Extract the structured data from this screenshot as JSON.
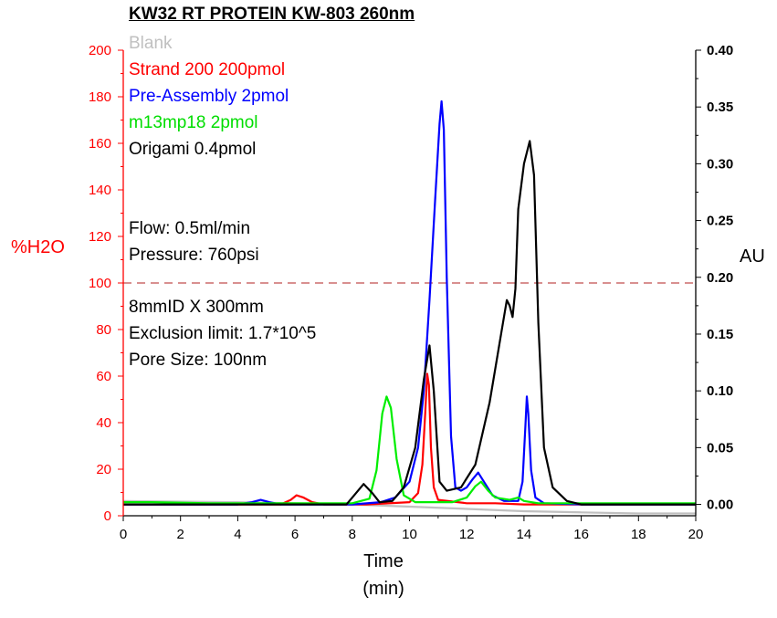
{
  "chart_data": {
    "type": "line",
    "title": "KW32 RT PROTEIN KW-803 260nm",
    "xlabel": "Time",
    "xlabel_unit": "(min)",
    "ylabel_left": "%H2O",
    "ylabel_right": "AU",
    "xlim": [
      0,
      20
    ],
    "ylim_left": [
      0,
      200
    ],
    "ylim_right": [
      -0.01,
      0.4
    ],
    "x_ticks": [
      "0",
      "2",
      "4",
      "6",
      "8",
      "10",
      "12",
      "14",
      "16",
      "18",
      "20"
    ],
    "y_left_ticks": [
      "0",
      "20",
      "40",
      "60",
      "80",
      "100",
      "120",
      "140",
      "160",
      "180",
      "200"
    ],
    "y_right_ticks": [
      "0.00",
      "0.05",
      "0.10",
      "0.15",
      "0.20",
      "0.25",
      "0.30",
      "0.35",
      "0.40"
    ],
    "reference_line": {
      "axis": "left",
      "value": 100,
      "style": "dashed",
      "color": "#b22222"
    },
    "legend_placement": "top-left",
    "notes": [
      "Flow: 0.5ml/min",
      "Pressure: 760psi",
      "8mmID X 300mm",
      "Exclusion limit: 1.7*10^5",
      "Pore Size: 100nm"
    ],
    "series": [
      {
        "name": "Blank",
        "color": "#c0c0c0",
        "points": [
          [
            0,
            0.003
          ],
          [
            4,
            0.002
          ],
          [
            8,
            0.0
          ],
          [
            10,
            -0.002
          ],
          [
            12,
            -0.004
          ],
          [
            14,
            -0.006
          ],
          [
            16,
            -0.007
          ],
          [
            18,
            -0.008
          ],
          [
            20,
            -0.008
          ]
        ]
      },
      {
        "name": "Strand 200 200pmol",
        "color": "#ff0000",
        "points": [
          [
            0,
            0.0
          ],
          [
            5.5,
            0.0
          ],
          [
            5.85,
            0.004
          ],
          [
            6.05,
            0.008
          ],
          [
            6.3,
            0.006
          ],
          [
            6.6,
            0.002
          ],
          [
            7.0,
            0.0
          ],
          [
            8.5,
            0.0
          ],
          [
            10.0,
            0.002
          ],
          [
            10.3,
            0.01
          ],
          [
            10.45,
            0.035
          ],
          [
            10.55,
            0.08
          ],
          [
            10.62,
            0.115
          ],
          [
            10.68,
            0.105
          ],
          [
            10.75,
            0.05
          ],
          [
            10.85,
            0.015
          ],
          [
            11.0,
            0.004
          ],
          [
            12.0,
            0.001
          ],
          [
            13.0,
            0.001
          ],
          [
            14.0,
            0.0
          ],
          [
            20,
            0.0
          ]
        ]
      },
      {
        "name": "Pre-Assembly 2pmol",
        "color": "#0000ff",
        "points": [
          [
            0,
            0.0
          ],
          [
            4.0,
            0.0
          ],
          [
            4.5,
            0.002
          ],
          [
            4.8,
            0.004
          ],
          [
            5.1,
            0.002
          ],
          [
            5.5,
            0.0
          ],
          [
            8.0,
            0.0
          ],
          [
            9.0,
            0.002
          ],
          [
            9.5,
            0.006
          ],
          [
            10.0,
            0.02
          ],
          [
            10.3,
            0.05
          ],
          [
            10.5,
            0.1
          ],
          [
            10.7,
            0.18
          ],
          [
            10.9,
            0.27
          ],
          [
            11.05,
            0.335
          ],
          [
            11.12,
            0.355
          ],
          [
            11.2,
            0.33
          ],
          [
            11.3,
            0.2
          ],
          [
            11.45,
            0.06
          ],
          [
            11.6,
            0.015
          ],
          [
            11.8,
            0.012
          ],
          [
            12.0,
            0.015
          ],
          [
            12.2,
            0.022
          ],
          [
            12.4,
            0.028
          ],
          [
            12.6,
            0.02
          ],
          [
            12.9,
            0.008
          ],
          [
            13.3,
            0.003
          ],
          [
            13.8,
            0.003
          ],
          [
            13.95,
            0.02
          ],
          [
            14.05,
            0.07
          ],
          [
            14.1,
            0.095
          ],
          [
            14.15,
            0.08
          ],
          [
            14.25,
            0.03
          ],
          [
            14.4,
            0.006
          ],
          [
            14.7,
            0.001
          ],
          [
            16.0,
            0.0
          ],
          [
            20,
            0.0
          ]
        ]
      },
      {
        "name": "m13mp18 2pmol",
        "color": "#00ee00",
        "points": [
          [
            0,
            0.002
          ],
          [
            1.0,
            0.002
          ],
          [
            3.0,
            0.001
          ],
          [
            6.0,
            0.001
          ],
          [
            8.0,
            0.001
          ],
          [
            8.6,
            0.005
          ],
          [
            8.85,
            0.03
          ],
          [
            9.05,
            0.08
          ],
          [
            9.2,
            0.095
          ],
          [
            9.35,
            0.085
          ],
          [
            9.55,
            0.04
          ],
          [
            9.8,
            0.008
          ],
          [
            10.2,
            0.002
          ],
          [
            11.5,
            0.002
          ],
          [
            12.0,
            0.006
          ],
          [
            12.3,
            0.016
          ],
          [
            12.5,
            0.02
          ],
          [
            12.75,
            0.012
          ],
          [
            13.0,
            0.006
          ],
          [
            13.5,
            0.004
          ],
          [
            13.8,
            0.006
          ],
          [
            14.0,
            0.003
          ],
          [
            14.5,
            0.001
          ],
          [
            20,
            0.001
          ]
        ]
      },
      {
        "name": "Origami 0.4pmol",
        "color": "#000000",
        "points": [
          [
            0,
            0.0
          ],
          [
            7.8,
            0.0
          ],
          [
            8.2,
            0.012
          ],
          [
            8.4,
            0.018
          ],
          [
            8.7,
            0.01
          ],
          [
            8.95,
            0.002
          ],
          [
            9.4,
            0.003
          ],
          [
            9.8,
            0.015
          ],
          [
            10.2,
            0.05
          ],
          [
            10.5,
            0.11
          ],
          [
            10.7,
            0.14
          ],
          [
            10.85,
            0.1
          ],
          [
            11.05,
            0.02
          ],
          [
            11.3,
            0.012
          ],
          [
            11.8,
            0.015
          ],
          [
            12.3,
            0.035
          ],
          [
            12.8,
            0.09
          ],
          [
            13.2,
            0.15
          ],
          [
            13.4,
            0.18
          ],
          [
            13.5,
            0.175
          ],
          [
            13.6,
            0.165
          ],
          [
            13.7,
            0.19
          ],
          [
            13.8,
            0.26
          ],
          [
            14.0,
            0.3
          ],
          [
            14.2,
            0.32
          ],
          [
            14.35,
            0.29
          ],
          [
            14.5,
            0.16
          ],
          [
            14.7,
            0.05
          ],
          [
            15.0,
            0.015
          ],
          [
            15.5,
            0.003
          ],
          [
            16.0,
            0.0
          ],
          [
            20,
            0.0
          ]
        ]
      }
    ]
  }
}
